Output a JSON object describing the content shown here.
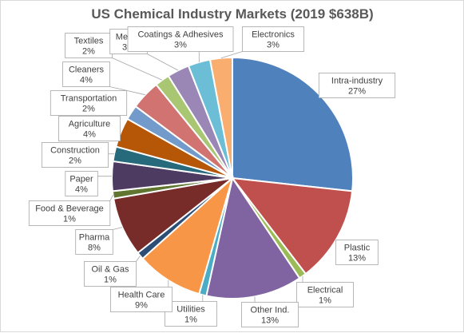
{
  "chart_data": {
    "type": "pie",
    "title": "US Chemical Industry Markets (2019 $638B)",
    "start_angle_deg": 0,
    "direction": "clockwise",
    "slices": [
      {
        "name": "Intra-industry",
        "value": 27,
        "label": "27%",
        "color": "#4f81bd"
      },
      {
        "name": "Plastic",
        "value": 13,
        "label": "13%",
        "color": "#c0504d"
      },
      {
        "name": "Electrical",
        "value": 1,
        "label": "1%",
        "color": "#9bbb59"
      },
      {
        "name": "Other Ind.",
        "value": 13,
        "label": "13%",
        "color": "#8064a2"
      },
      {
        "name": "Utilities",
        "value": 1,
        "label": "1%",
        "color": "#4bacc6"
      },
      {
        "name": "Health Care",
        "value": 9,
        "label": "9%",
        "color": "#f79646"
      },
      {
        "name": "Oil & Gas",
        "value": 1,
        "label": "1%",
        "color": "#2c4d75"
      },
      {
        "name": "Pharma",
        "value": 8,
        "label": "8%",
        "color": "#772c2a"
      },
      {
        "name": "Food & Beverage",
        "value": 1,
        "label": "1%",
        "color": "#5f7530"
      },
      {
        "name": "Paper",
        "value": 4,
        "label": "4%",
        "color": "#4d3b62"
      },
      {
        "name": "Construction",
        "value": 2,
        "label": "2%",
        "color": "#276a7c"
      },
      {
        "name": "Agriculture",
        "value": 4,
        "label": "4%",
        "color": "#b65708"
      },
      {
        "name": "Transportation",
        "value": 2,
        "label": "2%",
        "color": "#729aca"
      },
      {
        "name": "Cleaners",
        "value": 4,
        "label": "4%",
        "color": "#d07371"
      },
      {
        "name": "Textiles",
        "value": 2,
        "label": "2%",
        "color": "#a9c673"
      },
      {
        "name": "Metals",
        "value": 3,
        "label": "3%",
        "color": "#9a87b5"
      },
      {
        "name": "Coatings & Adhesives",
        "value": 3,
        "label": "3%",
        "color": "#6bbed6"
      },
      {
        "name": "Electronics",
        "value": 3,
        "label": "3%",
        "color": "#f9ad6f"
      }
    ]
  }
}
